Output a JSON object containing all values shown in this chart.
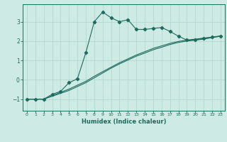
{
  "xlabel": "Humidex (Indice chaleur)",
  "bg_color": "#cdeae4",
  "grid_color": "#aed4cd",
  "line_color": "#1e6b5e",
  "xlim": [
    -0.5,
    23.5
  ],
  "ylim": [
    -1.6,
    3.9
  ],
  "x_ticks": [
    0,
    1,
    2,
    3,
    4,
    5,
    6,
    7,
    8,
    9,
    10,
    11,
    12,
    13,
    14,
    15,
    16,
    17,
    18,
    19,
    20,
    21,
    22,
    23
  ],
  "y_ticks": [
    -1,
    0,
    1,
    2,
    3
  ],
  "line1_x": [
    0,
    1,
    2,
    3,
    4,
    5,
    6,
    7,
    8,
    9,
    10,
    11,
    12,
    13,
    14,
    15,
    16,
    17,
    18,
    19,
    20,
    21,
    22,
    23
  ],
  "line1_y": [
    -1.0,
    -1.0,
    -1.0,
    -0.75,
    -0.6,
    -0.15,
    0.05,
    1.4,
    3.0,
    3.5,
    3.2,
    3.0,
    3.1,
    2.6,
    2.6,
    2.65,
    2.7,
    2.5,
    2.25,
    2.05,
    2.05,
    2.15,
    2.2,
    2.25
  ],
  "line2_x": [
    0,
    1,
    2,
    3,
    4,
    5,
    6,
    7,
    8,
    9,
    10,
    11,
    12,
    13,
    14,
    15,
    16,
    17,
    18,
    19,
    20,
    21,
    22,
    23
  ],
  "line2_y": [
    -1.0,
    -1.0,
    -1.0,
    -0.85,
    -0.7,
    -0.55,
    -0.35,
    -0.15,
    0.1,
    0.35,
    0.6,
    0.82,
    1.02,
    1.22,
    1.38,
    1.55,
    1.68,
    1.82,
    1.93,
    2.0,
    2.05,
    2.1,
    2.18,
    2.25
  ],
  "line3_x": [
    0,
    1,
    2,
    3,
    4,
    5,
    6,
    7,
    8,
    9,
    10,
    11,
    12,
    13,
    14,
    15,
    16,
    17,
    18,
    19,
    20,
    21,
    22,
    23
  ],
  "line3_y": [
    -1.0,
    -1.0,
    -1.0,
    -0.82,
    -0.65,
    -0.48,
    -0.28,
    -0.08,
    0.18,
    0.42,
    0.65,
    0.88,
    1.08,
    1.28,
    1.45,
    1.62,
    1.75,
    1.88,
    1.98,
    2.05,
    2.1,
    2.15,
    2.2,
    2.27
  ]
}
